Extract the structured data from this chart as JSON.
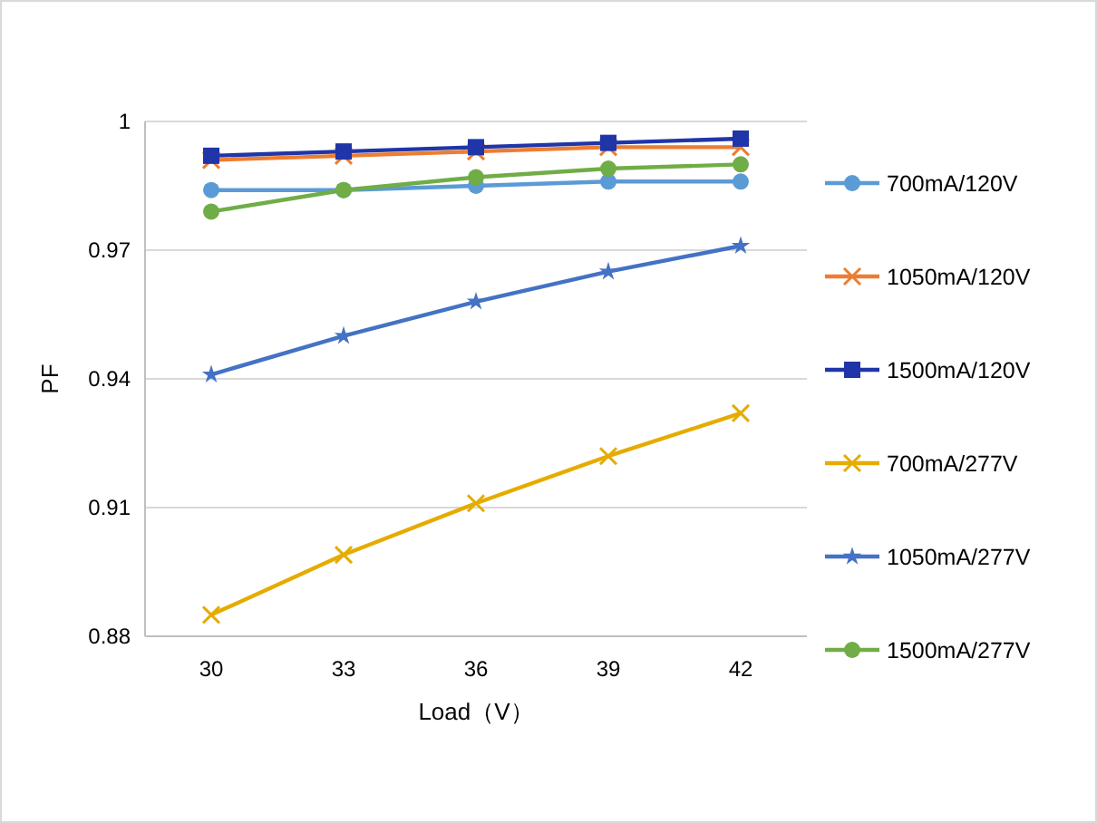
{
  "chart_data": {
    "type": "line",
    "xlabel": "Load（V）",
    "ylabel": "PF",
    "categories": [
      "30",
      "33",
      "36",
      "39",
      "42"
    ],
    "ylim": [
      0.88,
      1
    ],
    "yticks": [
      0.88,
      0.91,
      0.94,
      0.97,
      1
    ],
    "grid": "y",
    "legend": "right",
    "series": [
      {
        "name": "700mA/120V",
        "color": "#5b9bd5",
        "marker": "circle",
        "values": [
          0.984,
          0.984,
          0.985,
          0.986,
          0.986
        ]
      },
      {
        "name": "1050mA/120V",
        "color": "#ed7d31",
        "marker": "cross",
        "values": [
          0.991,
          0.992,
          0.993,
          0.994,
          0.994
        ]
      },
      {
        "name": "1500mA/120V",
        "color": "#1f35a8",
        "marker": "square",
        "values": [
          0.992,
          0.993,
          0.994,
          0.995,
          0.996
        ]
      },
      {
        "name": "700mA/277V",
        "color": "#e5ac00",
        "marker": "cross",
        "values": [
          0.885,
          0.899,
          0.911,
          0.922,
          0.932
        ]
      },
      {
        "name": "1050mA/277V",
        "color": "#4472c4",
        "marker": "star",
        "values": [
          0.941,
          0.95,
          0.958,
          0.965,
          0.971
        ]
      },
      {
        "name": "1500mA/277V",
        "color": "#70ad47",
        "marker": "circle",
        "values": [
          0.979,
          0.984,
          0.987,
          0.989,
          0.99
        ]
      }
    ]
  }
}
